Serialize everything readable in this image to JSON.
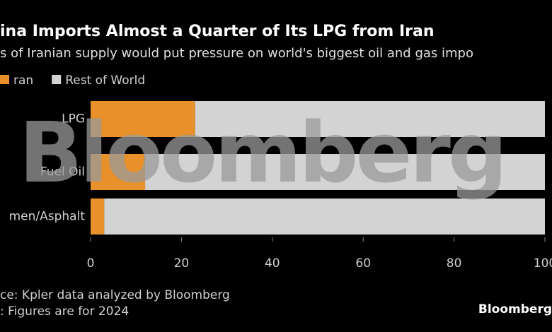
{
  "chart_data": {
    "type": "stacked-barh",
    "title": "ina Imports Almost a Quarter of Its LPG from Iran",
    "subtitle": "s of Iranian supply would put pressure on world's biggest oil and gas impo",
    "categories": [
      "LPG",
      "Fuel Oil",
      "men/Asphalt"
    ],
    "series": [
      {
        "name": "ran",
        "color": "#e8912b",
        "values": [
          23,
          12,
          3
        ]
      },
      {
        "name": "Rest of World",
        "color": "#d3d3d3",
        "values": [
          77,
          88,
          97
        ]
      }
    ],
    "xlim": [
      0,
      100
    ],
    "xticks": [
      0,
      20,
      40,
      60,
      80,
      100
    ],
    "notes": [
      "ce: Kpler data analyzed by Bloomberg",
      ": Figures are for 2024"
    ],
    "watermark": "Bloomberg",
    "brand": "Bloomberg"
  }
}
